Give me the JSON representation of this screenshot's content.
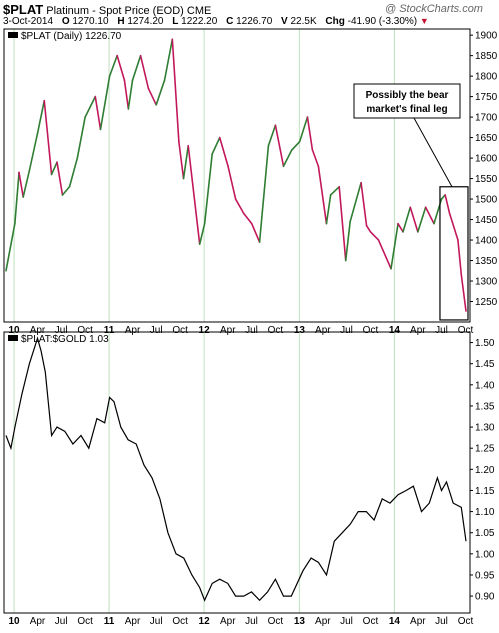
{
  "header": {
    "symbol": "$PLAT",
    "description": "Platinum  - Spot Price (EOD)",
    "exchange": "CME",
    "watermark": "@ StockCharts.com",
    "date": "3-Oct-2014",
    "open_label": "O",
    "open": "1270.10",
    "high_label": "H",
    "high": "1274.20",
    "low_label": "L",
    "low": "1222.20",
    "close_label": "C",
    "close": "1226.70",
    "volume_label": "V",
    "volume": "22.5K",
    "change_label": "Chg",
    "change": "-41.90 (-3.30%)",
    "down_marker": "▼"
  },
  "colors": {
    "up": "#2e7d32",
    "down": "#c2185b",
    "ratio": "#000000",
    "grid": "#bfe0bf",
    "border": "#000000",
    "highlight_box": "#000000"
  },
  "chart_data": [
    {
      "type": "line",
      "title": "$PLAT (Daily) 1226.70",
      "style": "up/down colored daily bars",
      "x_ticks": [
        "10",
        "Apr",
        "Jul",
        "Oct",
        "11",
        "Apr",
        "Jul",
        "Oct",
        "12",
        "Apr",
        "Jul",
        "Oct",
        "13",
        "Apr",
        "Jul",
        "Oct",
        "14",
        "Apr",
        "Jul",
        "Oct"
      ],
      "x_range": [
        "2009-12-01",
        "2014-10-03"
      ],
      "y_ticks": [
        1250,
        1300,
        1350,
        1400,
        1450,
        1500,
        1550,
        1600,
        1650,
        1700,
        1750,
        1800,
        1850,
        1900
      ],
      "ylim": [
        1200,
        1915
      ],
      "grid": "vertical at year starts",
      "annotation": {
        "text_line1": "Possibly the bear",
        "text_line2": "market's final leg"
      },
      "x": [
        "2009-12-01",
        "2010-01-04",
        "2010-01-20",
        "2010-02-05",
        "2010-03-01",
        "2010-04-01",
        "2010-04-27",
        "2010-05-25",
        "2010-06-15",
        "2010-07-06",
        "2010-08-02",
        "2010-09-01",
        "2010-10-01",
        "2010-11-09",
        "2010-11-29",
        "2011-01-03",
        "2011-02-01",
        "2011-03-01",
        "2011-03-16",
        "2011-04-01",
        "2011-05-02",
        "2011-06-01",
        "2011-07-01",
        "2011-08-02",
        "2011-09-01",
        "2011-09-26",
        "2011-10-14",
        "2011-11-01",
        "2011-12-15",
        "2012-01-03",
        "2012-02-01",
        "2012-03-01",
        "2012-04-02",
        "2012-05-01",
        "2012-06-01",
        "2012-07-02",
        "2012-08-01",
        "2012-09-04",
        "2012-10-01",
        "2012-11-01",
        "2012-12-03",
        "2013-01-02",
        "2013-02-01",
        "2013-02-20",
        "2013-03-15",
        "2013-04-15",
        "2013-05-01",
        "2013-06-03",
        "2013-06-28",
        "2013-07-15",
        "2013-08-26",
        "2013-09-16",
        "2013-10-01",
        "2013-11-01",
        "2013-12-19",
        "2014-01-15",
        "2014-02-03",
        "2014-03-03",
        "2014-04-01",
        "2014-05-01",
        "2014-06-02",
        "2014-07-01",
        "2014-07-15",
        "2014-08-01",
        "2014-09-02",
        "2014-09-15",
        "2014-10-03"
      ],
      "y": [
        1325,
        1440,
        1565,
        1505,
        1570,
        1660,
        1740,
        1560,
        1590,
        1510,
        1530,
        1600,
        1700,
        1750,
        1670,
        1800,
        1850,
        1790,
        1720,
        1790,
        1850,
        1770,
        1730,
        1790,
        1890,
        1640,
        1550,
        1630,
        1390,
        1440,
        1610,
        1650,
        1580,
        1500,
        1465,
        1440,
        1395,
        1630,
        1680,
        1580,
        1620,
        1640,
        1700,
        1620,
        1580,
        1440,
        1510,
        1530,
        1350,
        1445,
        1540,
        1435,
        1420,
        1400,
        1330,
        1440,
        1420,
        1480,
        1420,
        1480,
        1440,
        1500,
        1510,
        1465,
        1400,
        1315,
        1226.7
      ]
    },
    {
      "type": "line",
      "title": "$PLAT:$GOLD 1.03",
      "x_ticks": [
        "10",
        "Apr",
        "Jul",
        "Oct",
        "11",
        "Apr",
        "Jul",
        "Oct",
        "12",
        "Apr",
        "Jul",
        "Oct",
        "13",
        "Apr",
        "Jul",
        "Oct",
        "14",
        "Apr",
        "Jul",
        "Oct"
      ],
      "x_range": [
        "2009-12-01",
        "2014-10-03"
      ],
      "y_ticks": [
        0.9,
        0.95,
        1.0,
        1.05,
        1.1,
        1.15,
        1.2,
        1.25,
        1.3,
        1.35,
        1.4,
        1.45,
        1.5
      ],
      "ylim": [
        0.86,
        1.525
      ],
      "grid": "vertical at year starts",
      "x": [
        "2009-12-01",
        "2009-12-20",
        "2010-01-04",
        "2010-02-01",
        "2010-03-01",
        "2010-04-01",
        "2010-04-15",
        "2010-05-01",
        "2010-05-25",
        "2010-06-15",
        "2010-07-15",
        "2010-08-15",
        "2010-09-15",
        "2010-10-15",
        "2010-11-15",
        "2010-12-15",
        "2011-01-03",
        "2011-01-20",
        "2011-02-15",
        "2011-03-15",
        "2011-04-15",
        "2011-05-15",
        "2011-06-15",
        "2011-07-15",
        "2011-08-15",
        "2011-09-15",
        "2011-10-15",
        "2011-11-15",
        "2011-12-15",
        "2012-01-03",
        "2012-02-01",
        "2012-03-01",
        "2012-04-01",
        "2012-05-01",
        "2012-06-01",
        "2012-07-01",
        "2012-08-01",
        "2012-09-01",
        "2012-10-01",
        "2012-11-01",
        "2012-12-01",
        "2013-01-15",
        "2013-02-15",
        "2013-03-15",
        "2013-04-15",
        "2013-05-15",
        "2013-06-15",
        "2013-07-15",
        "2013-08-15",
        "2013-09-15",
        "2013-10-15",
        "2013-11-15",
        "2013-12-15",
        "2014-01-15",
        "2014-02-15",
        "2014-03-15",
        "2014-04-15",
        "2014-05-15",
        "2014-06-15",
        "2014-07-01",
        "2014-07-20",
        "2014-08-15",
        "2014-09-15",
        "2014-10-03"
      ],
      "y": [
        1.28,
        1.25,
        1.3,
        1.38,
        1.45,
        1.51,
        1.48,
        1.43,
        1.28,
        1.3,
        1.29,
        1.26,
        1.28,
        1.25,
        1.32,
        1.31,
        1.37,
        1.36,
        1.3,
        1.27,
        1.26,
        1.21,
        1.18,
        1.13,
        1.05,
        1.0,
        0.99,
        0.95,
        0.92,
        0.89,
        0.93,
        0.94,
        0.93,
        0.9,
        0.9,
        0.91,
        0.89,
        0.91,
        0.94,
        0.9,
        0.9,
        0.96,
        0.99,
        0.98,
        0.95,
        1.03,
        1.05,
        1.07,
        1.1,
        1.1,
        1.08,
        1.13,
        1.12,
        1.14,
        1.15,
        1.16,
        1.1,
        1.12,
        1.18,
        1.15,
        1.17,
        1.12,
        1.11,
        1.03
      ]
    }
  ]
}
